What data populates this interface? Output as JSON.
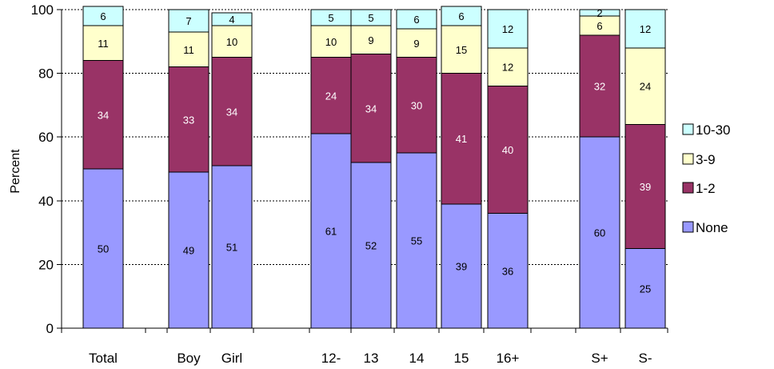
{
  "chart_data": {
    "type": "bar",
    "stacked": true,
    "ylabel": "Percent",
    "ylim": [
      0,
      100
    ],
    "yticks": [
      0,
      20,
      40,
      60,
      80,
      100
    ],
    "categories": [
      "Total",
      "Boy",
      "Girl",
      "12-",
      "13",
      "14",
      "15",
      "16+",
      "S+",
      "S-"
    ],
    "groups": [
      [
        "Total"
      ],
      [
        "Boy",
        "Girl"
      ],
      [
        "12-",
        "13",
        "14",
        "15",
        "16+"
      ],
      [
        "S+",
        "S-"
      ]
    ],
    "series": [
      {
        "name": "None",
        "color": "#9999FF",
        "values": [
          50,
          49,
          51,
          61,
          52,
          55,
          39,
          36,
          60,
          25
        ]
      },
      {
        "name": "1-2",
        "color": "#993366",
        "values": [
          34,
          33,
          34,
          24,
          34,
          30,
          41,
          40,
          32,
          39
        ]
      },
      {
        "name": "3-9",
        "color": "#FFFFCC",
        "values": [
          11,
          11,
          10,
          10,
          9,
          9,
          15,
          12,
          6,
          24
        ]
      },
      {
        "name": "10-30",
        "color": "#CCFFFF",
        "values": [
          6,
          7,
          4,
          5,
          5,
          6,
          6,
          12,
          2,
          12
        ]
      }
    ],
    "legend": {
      "placement": "right",
      "order": [
        "10-30",
        "3-9",
        "1-2",
        "None"
      ]
    },
    "grid": "horizontal-dashed"
  }
}
